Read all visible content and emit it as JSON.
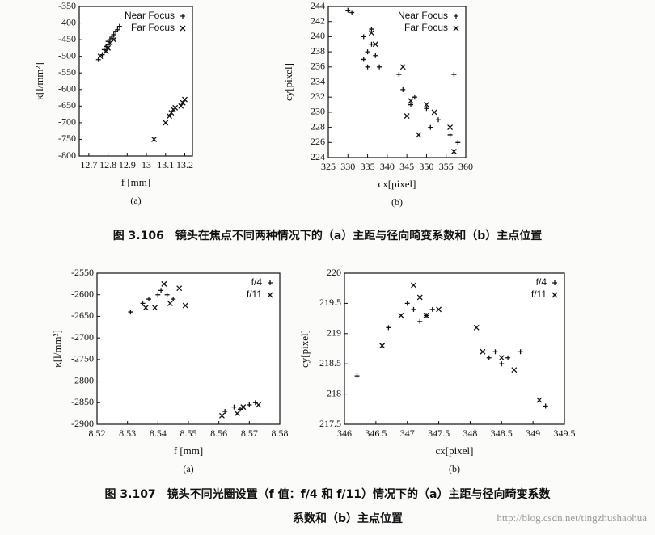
{
  "chart_data": [
    {
      "type": "scatter",
      "x_label": "f [mm]",
      "y_label": "κ[l/mm²]",
      "panel": "(a)",
      "legend": "upper right",
      "xlim": [
        12.65,
        13.24
      ],
      "xticks": [
        12.7,
        12.8,
        12.9,
        13,
        13.1,
        13.2
      ],
      "ylim": [
        -800,
        -350
      ],
      "yticks": [
        -800,
        -750,
        -700,
        -650,
        -600,
        -550,
        -500,
        -450,
        -400,
        -350
      ],
      "series": [
        {
          "name": "Near Focus",
          "marker": "plus",
          "color": "#111111",
          "x": [
            12.75,
            12.77,
            12.78,
            12.79,
            12.8,
            12.8,
            12.81,
            12.82,
            12.82,
            12.83,
            12.84,
            12.85,
            12.86
          ],
          "values": [
            -510,
            -495,
            -480,
            -470,
            -465,
            -455,
            -450,
            -445,
            -440,
            -435,
            -425,
            -420,
            -410
          ]
        },
        {
          "name": "Far Focus",
          "marker": "x",
          "color": "#111111",
          "x": [
            12.76,
            12.79,
            12.8,
            12.81,
            12.83,
            13.04,
            13.1,
            13.12,
            13.13,
            13.14,
            13.15,
            13.18,
            13.19,
            13.2
          ],
          "values": [
            -500,
            -485,
            -475,
            -460,
            -450,
            -750,
            -700,
            -680,
            -670,
            -660,
            -655,
            -650,
            -640,
            -630
          ]
        }
      ]
    },
    {
      "type": "scatter",
      "x_label": "cx[pixel]",
      "y_label": "cy[pixel]",
      "panel": "(b)",
      "legend": "upper right",
      "xlim": [
        325,
        360
      ],
      "xticks": [
        325,
        330,
        335,
        340,
        345,
        350,
        355,
        360
      ],
      "ylim": [
        224,
        244
      ],
      "yticks": [
        224,
        226,
        228,
        230,
        232,
        234,
        236,
        238,
        240,
        242,
        244
      ],
      "series": [
        {
          "name": "Near Focus",
          "marker": "plus",
          "color": "#111111",
          "x": [
            330,
            331,
            334,
            335,
            335,
            336,
            336,
            337,
            334,
            338,
            343,
            344,
            346,
            347,
            350,
            353,
            356,
            357,
            358,
            351
          ],
          "values": [
            243.5,
            243.2,
            240,
            238,
            236,
            241,
            239,
            237.5,
            237,
            236,
            235,
            233,
            231,
            232,
            230.5,
            229,
            227,
            235,
            226,
            228
          ]
        },
        {
          "name": "Far Focus",
          "marker": "x",
          "color": "#111111",
          "x": [
            336,
            337,
            344,
            345,
            348,
            346,
            350,
            352,
            356,
            357
          ],
          "values": [
            240.5,
            239,
            236,
            229.5,
            227,
            231.5,
            231,
            230,
            228,
            224.8
          ]
        }
      ]
    },
    {
      "type": "scatter",
      "x_label": "f [mm]",
      "y_label": "κ[l/mm²]",
      "panel": "(a)",
      "legend": "upper right",
      "xlim": [
        8.52,
        8.58
      ],
      "xticks": [
        8.52,
        8.53,
        8.54,
        8.55,
        8.56,
        8.57,
        8.58
      ],
      "ylim": [
        -2900,
        -2550
      ],
      "yticks": [
        -2900,
        -2850,
        -2800,
        -2750,
        -2700,
        -2650,
        -2600,
        -2550
      ],
      "series": [
        {
          "name": "f/4",
          "marker": "plus",
          "color": "#111111",
          "x": [
            8.531,
            8.535,
            8.537,
            8.54,
            8.541,
            8.543,
            8.545,
            8.562,
            8.565,
            8.567,
            8.57,
            8.572
          ],
          "values": [
            -2640,
            -2620,
            -2610,
            -2600,
            -2590,
            -2600,
            -2610,
            -2870,
            -2860,
            -2865,
            -2855,
            -2850
          ]
        },
        {
          "name": "f/11",
          "marker": "x",
          "color": "#111111",
          "x": [
            8.536,
            8.539,
            8.542,
            8.544,
            8.547,
            8.549,
            8.561,
            8.566,
            8.568,
            8.573
          ],
          "values": [
            -2630,
            -2630,
            -2575,
            -2620,
            -2585,
            -2625,
            -2880,
            -2875,
            -2860,
            -2855
          ]
        }
      ]
    },
    {
      "type": "scatter",
      "x_label": "cx[pixel]",
      "y_label": "cy[pixel]",
      "panel": "(b)",
      "legend": "upper right",
      "xlim": [
        346,
        349.5
      ],
      "xticks": [
        346,
        346.5,
        347,
        347.5,
        348,
        348.5,
        349,
        349.5
      ],
      "ylim": [
        217.5,
        220
      ],
      "yticks": [
        217.5,
        218,
        218.5,
        219,
        219.5,
        220
      ],
      "series": [
        {
          "name": "f/4",
          "marker": "plus",
          "color": "#111111",
          "x": [
            346.2,
            346.7,
            347,
            347.1,
            347.2,
            347.3,
            347.4,
            348.3,
            348.4,
            348.5,
            348.6,
            348.8,
            349.2
          ],
          "values": [
            218.3,
            219.1,
            219.5,
            219.4,
            219.2,
            219.3,
            219.4,
            218.6,
            218.7,
            218.5,
            218.6,
            218.7,
            217.8
          ]
        },
        {
          "name": "f/11",
          "marker": "x",
          "color": "#111111",
          "x": [
            346.6,
            346.9,
            347.1,
            347.2,
            347.3,
            347.5,
            348.1,
            348.2,
            348.5,
            348.7,
            349.1
          ],
          "values": [
            218.8,
            219.3,
            219.8,
            219.6,
            219.3,
            219.4,
            219.1,
            218.7,
            218.6,
            218.4,
            217.9
          ]
        }
      ]
    }
  ],
  "captions": [
    "图 3.106　镜头在焦点不同两种情况下的（a）主距与径向畸变系数和（b）主点位置",
    "图 3.107　镜头不同光圈设置（f 值：f/4 和 f/11）情况下的（a）主距与径向畸变系数",
    "系数和（b）主点位置"
  ],
  "watermark": "http://blog.csdn.net/tingzhushaohua"
}
